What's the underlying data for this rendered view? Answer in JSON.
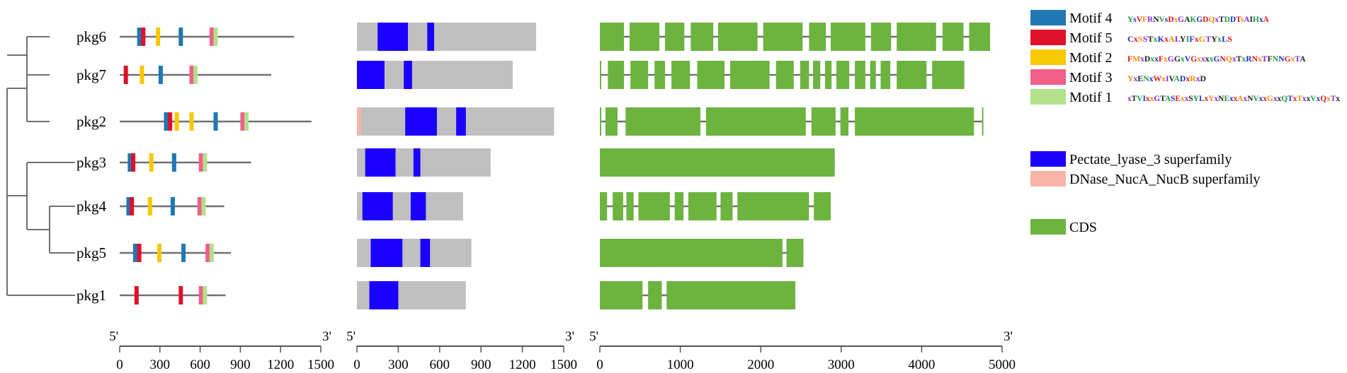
{
  "genes": [
    "pkg6",
    "pkg7",
    "pkg2",
    "pkg3",
    "pkg4",
    "pkg5",
    "pkg1"
  ],
  "colors": {
    "motif4": "#1f77b4",
    "motif5": "#e0102a",
    "motif2": "#f8c800",
    "motif3": "#f06088",
    "motif1": "#b4e08c",
    "pectate": "#1a00ff",
    "dnase": "#f8b4a8",
    "cds": "#6db33f",
    "protein": "#c0c0c0",
    "line": "#707070"
  },
  "motif_panel": {
    "genes": [
      {
        "name": "pkg6",
        "length": 1300,
        "motifs": [
          {
            "id": "motif4",
            "pos": 130
          },
          {
            "id": "motif5",
            "pos": 160
          },
          {
            "id": "motif2",
            "pos": 270
          },
          {
            "id": "motif4",
            "pos": 440
          },
          {
            "id": "motif3",
            "pos": 670
          },
          {
            "id": "motif1",
            "pos": 700
          }
        ]
      },
      {
        "name": "pkg7",
        "length": 1130,
        "motifs": [
          {
            "id": "motif5",
            "pos": 30
          },
          {
            "id": "motif2",
            "pos": 150
          },
          {
            "id": "motif4",
            "pos": 290
          },
          {
            "id": "motif3",
            "pos": 520
          },
          {
            "id": "motif1",
            "pos": 550
          }
        ]
      },
      {
        "name": "pkg2",
        "length": 1430,
        "motifs": [
          {
            "id": "motif4",
            "pos": 330
          },
          {
            "id": "motif5",
            "pos": 360
          },
          {
            "id": "motif2",
            "pos": 410
          },
          {
            "id": "motif2",
            "pos": 520
          },
          {
            "id": "motif4",
            "pos": 700
          },
          {
            "id": "motif3",
            "pos": 900
          },
          {
            "id": "motif1",
            "pos": 930
          }
        ]
      },
      {
        "name": "pkg3",
        "length": 980,
        "motifs": [
          {
            "id": "motif4",
            "pos": 60
          },
          {
            "id": "motif5",
            "pos": 85
          },
          {
            "id": "motif2",
            "pos": 220
          },
          {
            "id": "motif4",
            "pos": 390
          },
          {
            "id": "motif3",
            "pos": 590
          },
          {
            "id": "motif1",
            "pos": 620
          }
        ]
      },
      {
        "name": "pkg4",
        "length": 780,
        "motifs": [
          {
            "id": "motif4",
            "pos": 50
          },
          {
            "id": "motif5",
            "pos": 75
          },
          {
            "id": "motif2",
            "pos": 210
          },
          {
            "id": "motif4",
            "pos": 380
          },
          {
            "id": "motif3",
            "pos": 580
          },
          {
            "id": "motif1",
            "pos": 610
          }
        ]
      },
      {
        "name": "pkg5",
        "length": 830,
        "motifs": [
          {
            "id": "motif4",
            "pos": 100
          },
          {
            "id": "motif5",
            "pos": 130
          },
          {
            "id": "motif2",
            "pos": 280
          },
          {
            "id": "motif4",
            "pos": 460
          },
          {
            "id": "motif3",
            "pos": 640
          },
          {
            "id": "motif1",
            "pos": 670
          }
        ]
      },
      {
        "name": "pkg1",
        "length": 790,
        "motifs": [
          {
            "id": "motif5",
            "pos": 110
          },
          {
            "id": "motif5",
            "pos": 440
          },
          {
            "id": "motif3",
            "pos": 590
          },
          {
            "id": "motif1",
            "pos": 620
          }
        ]
      }
    ],
    "axis": {
      "ticks": [
        0,
        300,
        600,
        900,
        1200,
        1500
      ],
      "start_label": "5'",
      "end_label": "3'"
    }
  },
  "domain_panel": {
    "genes": [
      {
        "name": "pkg6",
        "length": 1300,
        "domains": [
          {
            "id": "pectate",
            "start": 150,
            "end": 370
          },
          {
            "id": "pectate",
            "start": 510,
            "end": 560
          }
        ]
      },
      {
        "name": "pkg7",
        "length": 1130,
        "domains": [
          {
            "id": "pectate",
            "start": 0,
            "end": 200
          },
          {
            "id": "pectate",
            "start": 340,
            "end": 400
          }
        ]
      },
      {
        "name": "pkg2",
        "length": 1430,
        "domains": [
          {
            "id": "dnase",
            "start": 0,
            "end": 30
          },
          {
            "id": "pectate",
            "start": 350,
            "end": 580
          },
          {
            "id": "pectate",
            "start": 720,
            "end": 790
          }
        ]
      },
      {
        "name": "pkg3",
        "length": 970,
        "domains": [
          {
            "id": "pectate",
            "start": 60,
            "end": 280
          },
          {
            "id": "pectate",
            "start": 410,
            "end": 460
          }
        ]
      },
      {
        "name": "pkg4",
        "length": 770,
        "domains": [
          {
            "id": "pectate",
            "start": 40,
            "end": 260
          },
          {
            "id": "pectate",
            "start": 390,
            "end": 500
          }
        ]
      },
      {
        "name": "pkg5",
        "length": 830,
        "domains": [
          {
            "id": "pectate",
            "start": 100,
            "end": 330
          },
          {
            "id": "pectate",
            "start": 460,
            "end": 530
          }
        ]
      },
      {
        "name": "pkg1",
        "length": 790,
        "domains": [
          {
            "id": "pectate",
            "start": 90,
            "end": 300
          }
        ]
      }
    ],
    "axis": {
      "ticks": [
        0,
        300,
        600,
        900,
        1200,
        1500
      ],
      "start_label": "5'",
      "end_label": "3'"
    }
  },
  "gene_panel": {
    "genes": [
      {
        "name": "pkg6",
        "length": 4850,
        "exons": [
          [
            0,
            300
          ],
          [
            370,
            740
          ],
          [
            810,
            1050
          ],
          [
            1130,
            1410
          ],
          [
            1470,
            1960
          ],
          [
            2030,
            2520
          ],
          [
            2600,
            2810
          ],
          [
            2870,
            3300
          ],
          [
            3370,
            3620
          ],
          [
            3690,
            4180
          ],
          [
            4260,
            4520
          ],
          [
            4590,
            4850
          ]
        ]
      },
      {
        "name": "pkg7",
        "length": 4530,
        "exons": [
          [
            0,
            10
          ],
          [
            100,
            300
          ],
          [
            380,
            600
          ],
          [
            680,
            810
          ],
          [
            890,
            1120
          ],
          [
            1210,
            1550
          ],
          [
            1620,
            2110
          ],
          [
            2190,
            2410
          ],
          [
            2490,
            2600
          ],
          [
            2650,
            2740
          ],
          [
            2800,
            2880
          ],
          [
            2940,
            3100
          ],
          [
            3170,
            3300
          ],
          [
            3360,
            3430
          ],
          [
            3490,
            3610
          ],
          [
            3690,
            4060
          ],
          [
            4130,
            4530
          ]
        ]
      },
      {
        "name": "pkg2",
        "length": 4760,
        "exons": [
          [
            0,
            10
          ],
          [
            70,
            220
          ],
          [
            320,
            1250
          ],
          [
            1320,
            2560
          ],
          [
            2630,
            2930
          ],
          [
            2990,
            3090
          ],
          [
            3170,
            4650
          ],
          [
            4750,
            4760
          ]
        ]
      },
      {
        "name": "pkg3",
        "length": 2920,
        "exons": [
          [
            0,
            2920
          ]
        ]
      },
      {
        "name": "pkg4",
        "length": 2870,
        "exons": [
          [
            0,
            90
          ],
          [
            160,
            290
          ],
          [
            330,
            420
          ],
          [
            480,
            870
          ],
          [
            930,
            1040
          ],
          [
            1100,
            1450
          ],
          [
            1500,
            1650
          ],
          [
            1710,
            2600
          ],
          [
            2660,
            2870
          ]
        ]
      },
      {
        "name": "pkg5",
        "length": 2530,
        "exons": [
          [
            0,
            2270
          ],
          [
            2320,
            2530
          ]
        ]
      },
      {
        "name": "pkg1",
        "length": 2430,
        "exons": [
          [
            0,
            530
          ],
          [
            600,
            770
          ],
          [
            830,
            2430
          ]
        ]
      }
    ],
    "axis": {
      "ticks": [
        0,
        1000,
        2000,
        3000,
        4000,
        5000
      ],
      "start_label": "5'",
      "end_label": "3'"
    }
  },
  "legend": {
    "motifs": [
      {
        "id": "motif4",
        "label": "Motif 4",
        "logo": "YsVFRNVsDxGAKGDQxTDDTsAIHxA"
      },
      {
        "id": "motif5",
        "label": "Motif 5",
        "logo": "CxSSTxKxALYIFxGTYxLS"
      },
      {
        "id": "motif2",
        "label": "Motif 2",
        "logo": "FMxDxxFxGGxVGxxxxGNQxTxRNxTFNNGxTA"
      },
      {
        "id": "motif3",
        "label": "Motif 3",
        "logo": "YxENxWxIVADxRxD"
      },
      {
        "id": "motif1",
        "label": "Motif 1",
        "logo": "xTVIxxGTASExxSYLxYxNExxAxNVxxGxxQTxTxxVxQxTx"
      }
    ],
    "domains": [
      {
        "id": "pectate",
        "label": "Pectate_lyase_3 superfamily"
      },
      {
        "id": "dnase",
        "label": "DNase_NucA_NucB superfamily"
      }
    ],
    "cds": {
      "id": "cds",
      "label": "CDS"
    }
  }
}
